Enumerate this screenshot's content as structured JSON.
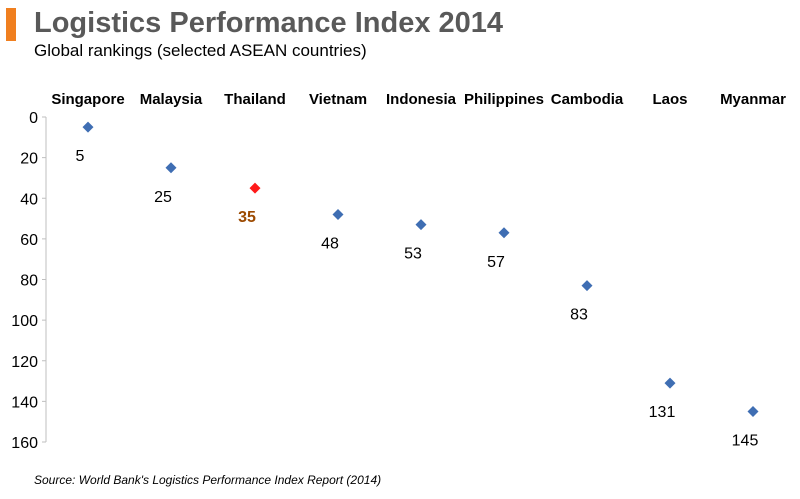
{
  "header": {
    "title": "Logistics Performance Index 2014",
    "subtitle": "Global rankings (selected ASEAN countries)"
  },
  "footer": {
    "source": "Source: World Bank's Logistics Performance Index Report (2014)"
  },
  "colors": {
    "accent_bar": "#f07f1f",
    "marker": "#3f6eb3",
    "highlight_marker": "#ff1a1a",
    "highlight_label": "#9c4a00",
    "axis": "#bfbfbf"
  },
  "chart_data": {
    "type": "scatter",
    "categories": [
      "Singapore",
      "Malaysia",
      "Thailand",
      "Vietnam",
      "Indonesia",
      "Philippines",
      "Cambodia",
      "Laos",
      "Myanmar"
    ],
    "values": [
      5,
      25,
      35,
      48,
      53,
      57,
      83,
      131,
      145
    ],
    "highlight": "Thailand",
    "ylim": [
      0,
      160
    ],
    "y_inverted": true,
    "yticks": [
      0,
      20,
      40,
      60,
      80,
      100,
      120,
      140,
      160
    ],
    "x_axis_position": "top",
    "grid": false,
    "marker": "diamond"
  }
}
